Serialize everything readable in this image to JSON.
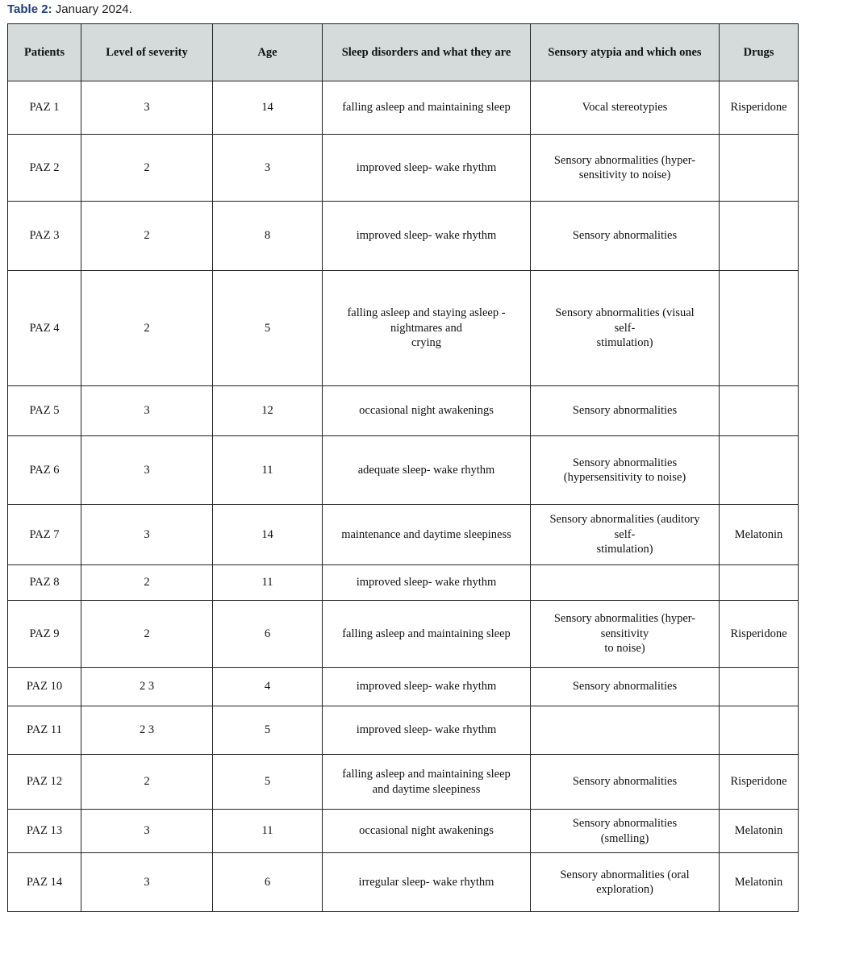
{
  "caption": {
    "label": "Table 2:",
    "text": " January 2024."
  },
  "table": {
    "headers": [
      "Patients",
      "Level of severity",
      "Age",
      "Sleep disorders and what they are",
      "Sensory atypia and which ones",
      "Drugs"
    ],
    "rows": [
      [
        "PAZ 1",
        "3",
        "14",
        "falling asleep and maintaining sleep",
        "Vocal stereotypies",
        "Risperidone"
      ],
      [
        "PAZ 2",
        "2",
        "3",
        "improved sleep- wake rhythm",
        "Sensory abnormalities (hyper-\nsensitivity to noise)",
        ""
      ],
      [
        "PAZ 3",
        "2",
        "8",
        "improved sleep- wake rhythm",
        "Sensory abnormalities",
        ""
      ],
      [
        "PAZ 4",
        "2",
        "5",
        "falling asleep and staying asleep -\nnightmares and\ncrying",
        "Sensory abnormalities (visual\nself-\nstimulation)",
        ""
      ],
      [
        "PAZ 5",
        "3",
        "12",
        "occasional night awakenings",
        "Sensory abnormalities",
        ""
      ],
      [
        "PAZ 6",
        "3",
        "11",
        "adequate sleep- wake rhythm",
        "Sensory abnormalities\n(hypersensitivity to noise)",
        ""
      ],
      [
        "PAZ 7",
        "3",
        "14",
        "maintenance and daytime sleepiness",
        "Sensory abnormalities (auditory\nself-\nstimulation)",
        "Melatonin"
      ],
      [
        "PAZ 8",
        "2",
        "11",
        "improved sleep- wake rhythm",
        "",
        ""
      ],
      [
        "PAZ 9",
        "2",
        "6",
        "falling asleep and maintaining sleep",
        "Sensory abnormalities (hyper-\nsensitivity\nto noise)",
        "Risperidone"
      ],
      [
        "PAZ 10",
        "2 3",
        "4",
        "improved sleep- wake rhythm",
        "Sensory abnormalities",
        ""
      ],
      [
        "PAZ 11",
        "2 3",
        "5",
        "improved sleep- wake rhythm",
        "",
        ""
      ],
      [
        "PAZ 12",
        "2",
        "5",
        "falling asleep and maintaining sleep\nand daytime sleepiness",
        "Sensory abnormalities",
        "Risperidone"
      ],
      [
        "PAZ 13",
        "3",
        "11",
        "occasional night awakenings",
        "Sensory abnormalities\n(smelling)",
        "Melatonin"
      ],
      [
        "PAZ 14",
        "3",
        "6",
        "irregular sleep- wake rhythm",
        "Sensory abnormalities (oral\nexploration)",
        "Melatonin"
      ]
    ]
  }
}
